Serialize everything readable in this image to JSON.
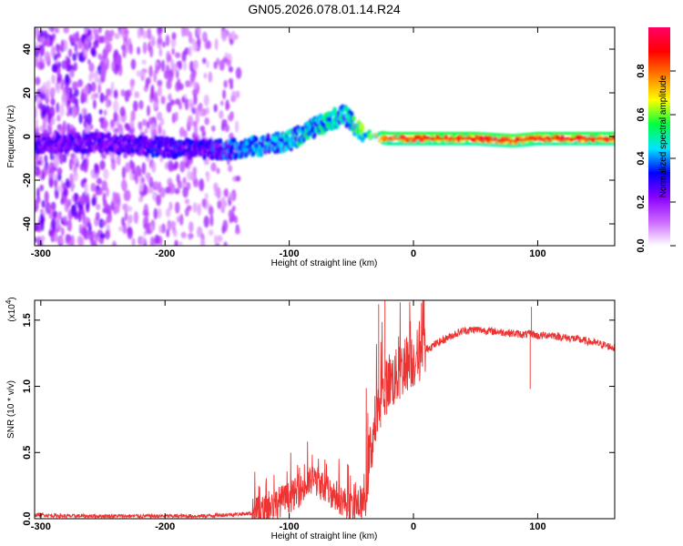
{
  "title": "GN05.2026.078.01.14.R24",
  "chart_data": [
    {
      "type": "heatmap",
      "name": "spectrogram",
      "xlabel": "Height of straight line (km)",
      "ylabel": "Frequency (Hz)",
      "xlim": [
        -305,
        162
      ],
      "ylim": [
        -50,
        50
      ],
      "xticks": [
        -300,
        -200,
        -100,
        0,
        100
      ],
      "yticks": [
        -40,
        -20,
        0,
        20,
        40
      ],
      "colorbar": {
        "label": "Normalized spectral amplitude",
        "range": [
          0,
          1
        ],
        "ticks": [
          "0.0",
          "0.2",
          "0.4",
          "0.6",
          "0.8"
        ],
        "colors": [
          "#ffffff",
          "#cc66ff",
          "#8800ff",
          "#0000ff",
          "#00e5ff",
          "#00ff40",
          "#ffff00",
          "#ff7f00",
          "#ff0000",
          "#ff0066"
        ]
      },
      "ridge": {
        "description_x_km": [
          -305,
          -250,
          -200,
          -170,
          -150,
          -120,
          -100,
          -80,
          -65,
          -55,
          -48,
          -40,
          -30,
          -20,
          0,
          50,
          80,
          100,
          162
        ],
        "center_freq_hz": [
          -3,
          -3,
          -5,
          -6,
          -6,
          -4,
          -2,
          4,
          8,
          10,
          5,
          1,
          0,
          -1,
          -1,
          -1,
          -2,
          -1,
          -1
        ],
        "amplitude": [
          0.28,
          0.3,
          0.32,
          0.3,
          0.38,
          0.42,
          0.46,
          0.5,
          0.52,
          0.45,
          0.55,
          0.6,
          0.7,
          0.8,
          0.85,
          0.88,
          0.9,
          0.88,
          0.88
        ]
      },
      "noise_region_km": [
        -305,
        -140
      ]
    },
    {
      "type": "line",
      "name": "snr",
      "xlabel": "Height of straight line (km)",
      "ylabel": "SNR (10 * v/v)",
      "multiplier": "(x10^4)",
      "multiplier_base": "(x10",
      "multiplier_exp": "4",
      "multiplier_close": ")",
      "xlim": [
        -305,
        162
      ],
      "ylim": [
        0,
        1.65
      ],
      "xticks": [
        -300,
        -200,
        -100,
        0,
        100
      ],
      "yticks": [
        "0.0",
        "0.5",
        "1.0",
        "1.5"
      ],
      "ytick_values": [
        0,
        0.5,
        1.0,
        1.5
      ],
      "color": "#ee3333",
      "series": {
        "x": [
          -305,
          -280,
          -250,
          -220,
          -200,
          -170,
          -150,
          -130,
          -120,
          -110,
          -100,
          -90,
          -80,
          -70,
          -60,
          -50,
          -40,
          -35,
          -30,
          -25,
          -20,
          -15,
          -10,
          -5,
          0,
          10,
          20,
          30,
          40,
          50,
          60,
          70,
          80,
          90,
          95,
          100,
          110,
          120,
          130,
          140,
          150,
          162
        ],
        "y": [
          0.03,
          0.02,
          0.02,
          0.02,
          0.02,
          0.02,
          0.03,
          0.04,
          0.06,
          0.12,
          0.16,
          0.22,
          0.3,
          0.22,
          0.16,
          0.08,
          0.12,
          0.5,
          0.75,
          0.9,
          1.05,
          1.05,
          1.12,
          1.18,
          1.2,
          1.28,
          1.33,
          1.38,
          1.42,
          1.43,
          1.42,
          1.41,
          1.4,
          1.39,
          1.4,
          1.38,
          1.39,
          1.37,
          1.36,
          1.34,
          1.32,
          1.29
        ],
        "spikes": [
          {
            "x": -23,
            "y": 1.65
          },
          {
            "x": -28,
            "y": 1.62
          },
          {
            "x": 95,
            "y": 1.6
          },
          {
            "x": 94,
            "y": 0.98
          }
        ],
        "noise_amplitude": [
          {
            "from": -305,
            "to": -130,
            "amp": 0.015
          },
          {
            "from": -130,
            "to": -40,
            "amp": 0.12
          },
          {
            "from": -40,
            "to": 10,
            "amp": 0.22
          },
          {
            "from": 10,
            "to": 162,
            "amp": 0.03
          }
        ]
      }
    }
  ]
}
